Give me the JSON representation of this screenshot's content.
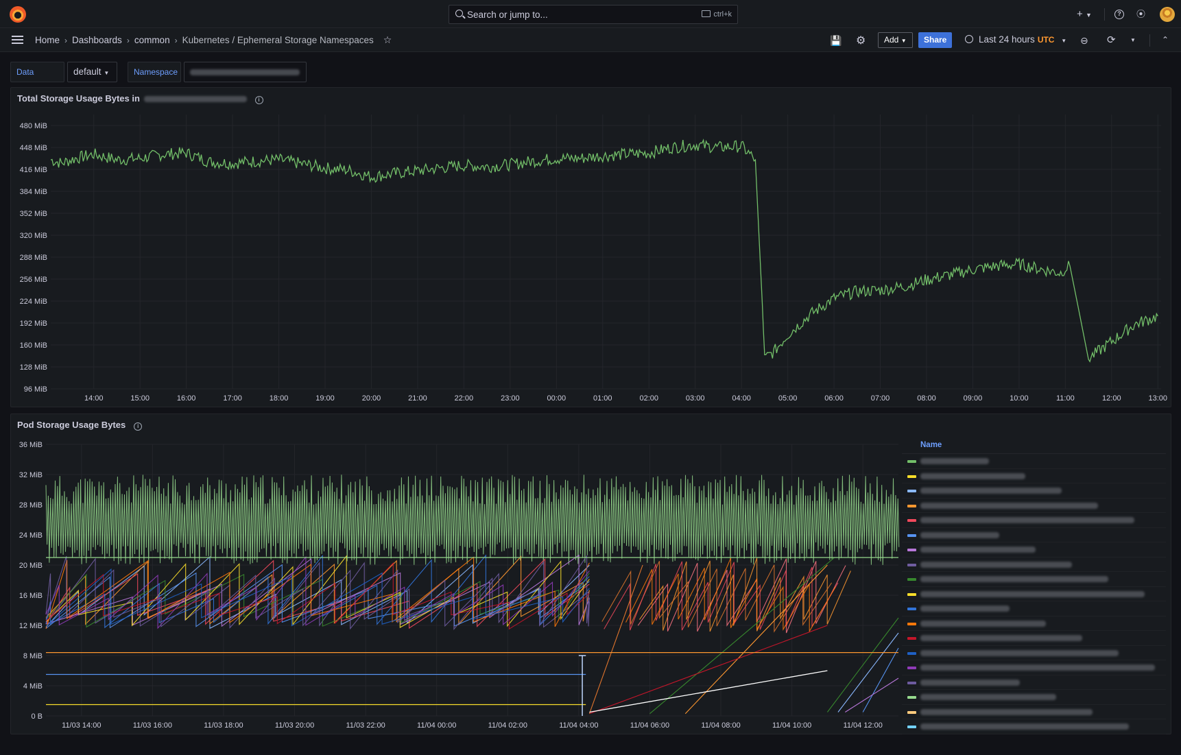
{
  "topbar": {
    "search_placeholder": "Search or jump to...",
    "search_shortcut": "ctrl+k",
    "plus_label": "+",
    "help_icon": "?"
  },
  "breadcrumb": {
    "home": "Home",
    "dashboards": "Dashboards",
    "folder": "common",
    "current": "Kubernetes / Ephemeral Storage Namespaces"
  },
  "toolbar": {
    "add_label": "Add",
    "share_label": "Share",
    "time_range": "Last 24 hours",
    "timezone": "UTC"
  },
  "variables": {
    "datasource_label": "Data source",
    "datasource_value": "default",
    "namespace_label": "Namespace"
  },
  "colors": {
    "accent_blue": "#6e9fff",
    "share_button": "#3d71d9",
    "utc": "#ff9830",
    "series_green": "#73bf69"
  },
  "panel1": {
    "title": "Total Storage Usage Bytes in",
    "chart_data": {
      "type": "line",
      "title": "Total Storage Usage Bytes in",
      "y_ticks": [
        "96 MiB",
        "128 MiB",
        "160 MiB",
        "192 MiB",
        "224 MiB",
        "256 MiB",
        "288 MiB",
        "320 MiB",
        "352 MiB",
        "384 MiB",
        "416 MiB",
        "448 MiB",
        "480 MiB"
      ],
      "x_ticks": [
        "14:00",
        "15:00",
        "16:00",
        "17:00",
        "18:00",
        "19:00",
        "20:00",
        "21:00",
        "22:00",
        "23:00",
        "00:00",
        "01:00",
        "02:00",
        "03:00",
        "04:00",
        "05:00",
        "06:00",
        "07:00",
        "08:00",
        "09:00",
        "10:00",
        "11:00",
        "12:00",
        "13:00"
      ],
      "ylim": [
        96,
        496
      ],
      "grid": true,
      "series": [
        {
          "color": "#73bf69",
          "x": [
            13.07,
            13.3,
            13.6,
            14.0,
            14.5,
            15.0,
            15.5,
            16.0,
            16.5,
            17.0,
            17.5,
            18.0,
            18.5,
            19.0,
            19.5,
            20.0,
            20.5,
            21.0,
            21.5,
            22.0,
            22.5,
            23.0,
            23.5,
            24.0,
            24.5,
            25.0,
            25.5,
            26.0,
            26.5,
            27.0,
            27.5,
            28.0,
            28.3,
            28.45,
            28.5,
            28.7,
            29.0,
            29.5,
            30.0,
            30.5,
            31.0,
            31.5,
            32.0,
            32.5,
            33.0,
            33.5,
            34.0,
            34.5,
            34.9,
            35.0,
            35.1,
            35.5,
            36.0,
            36.5,
            37.0
          ],
          "y": [
            430,
            425,
            432,
            438,
            430,
            432,
            438,
            440,
            427,
            425,
            428,
            430,
            424,
            418,
            415,
            405,
            410,
            414,
            418,
            422,
            420,
            423,
            428,
            432,
            432,
            436,
            438,
            440,
            448,
            452,
            448,
            450,
            430,
            220,
            140,
            150,
            175,
            205,
            228,
            238,
            240,
            245,
            255,
            262,
            270,
            275,
            278,
            270,
            265,
            272,
            275,
            140,
            165,
            190,
            202
          ]
        }
      ]
    }
  },
  "panel2": {
    "title": "Pod Storage Usage Bytes",
    "legend_header": "Name",
    "chart_data": {
      "type": "line",
      "title": "Pod Storage Usage Bytes",
      "y_ticks": [
        "0 B",
        "4 MiB",
        "8 MiB",
        "12 MiB",
        "16 MiB",
        "20 MiB",
        "24 MiB",
        "28 MiB",
        "32 MiB",
        "36 MiB"
      ],
      "x_ticks": [
        "11/03 14:00",
        "11/03 16:00",
        "11/03 18:00",
        "11/03 20:00",
        "11/03 22:00",
        "11/04 00:00",
        "11/04 02:00",
        "11/04 04:00",
        "11/04 06:00",
        "11/04 08:00",
        "11/04 10:00",
        "11/04 12:00"
      ],
      "ylim": [
        0,
        36
      ],
      "grid": true,
      "legend_placement": "right",
      "legend_colors": [
        "#73bf69",
        "#fade2a",
        "#8ab8ff",
        "#ff9830",
        "#f2495c",
        "#5794f2",
        "#b877d9",
        "#705da0",
        "#37872d",
        "#fade2a",
        "#3274d9",
        "#ff780a",
        "#c4162a",
        "#1f60c4",
        "#8f3bb8",
        "#6d5b9f",
        "#96d98d",
        "#ffcb7d",
        "#73d2ff"
      ],
      "series": [
        {
          "color": "#96d98d",
          "x": [
            13.0,
            37.0
          ],
          "y": [
            21,
            21
          ]
        },
        {
          "color": "#ff9830",
          "x": [
            13.0,
            37.0
          ],
          "y": [
            8.4,
            8.4
          ]
        },
        {
          "color": "#5794f2",
          "x": [
            13.0,
            28.2
          ],
          "y": [
            5.5,
            5.5
          ]
        },
        {
          "color": "#fade2a",
          "x": [
            13.0,
            28.2
          ],
          "y": [
            1.5,
            1.5
          ]
        },
        {
          "color": "#ffffff",
          "x": [
            28.3,
            35.0
          ],
          "y": [
            0.5,
            6.0
          ]
        }
      ]
    }
  }
}
